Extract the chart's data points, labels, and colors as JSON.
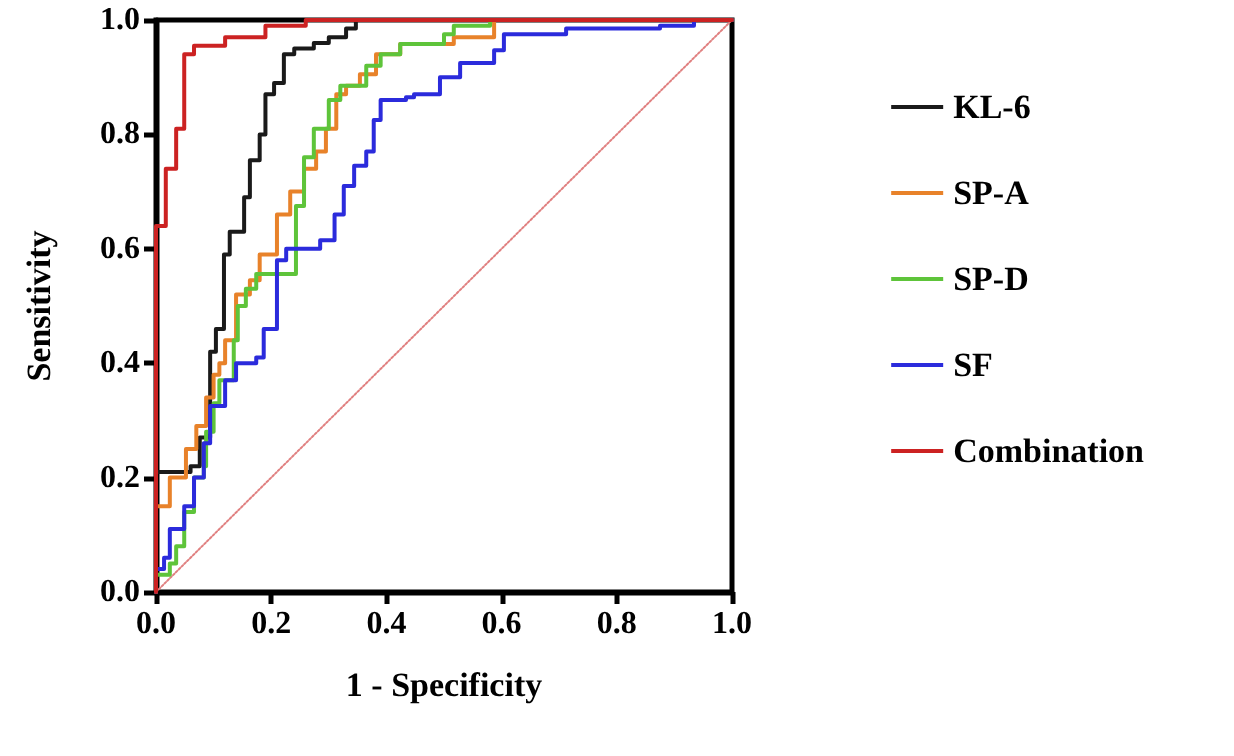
{
  "chart_data": {
    "type": "line",
    "xlabel": "1 - Specificity",
    "ylabel": "Sensitivity",
    "xlim": [
      0,
      1
    ],
    "ylim": [
      0,
      1
    ],
    "xticks": [
      {
        "value": 0,
        "label": "0.0"
      },
      0.2,
      0.4,
      0.6,
      0.8,
      {
        "value": 1,
        "label": "1.0"
      }
    ],
    "yticks": [
      {
        "value": 0,
        "label": "0.0"
      },
      0.2,
      0.4,
      0.6,
      0.8,
      {
        "value": 1,
        "label": "1.0"
      }
    ],
    "grid": false,
    "legend": "right",
    "marker": "none",
    "line_style": "solid",
    "series": [
      {
        "name": "KL-6",
        "color": "#1a1a1a",
        "x": [
          0,
          0,
          0.06,
          0.06,
          0.076,
          0.076,
          0.094,
          0.094,
          0.104,
          0.104,
          0.118,
          0.118,
          0.128,
          0.128,
          0.153,
          0.153,
          0.163,
          0.163,
          0.18,
          0.18,
          0.19,
          0.19,
          0.205,
          0.205,
          0.222,
          0.222,
          0.24,
          0.24,
          0.274,
          0.274,
          0.3,
          0.3,
          0.33,
          0.33,
          0.347,
          0.347,
          1
        ],
        "values": [
          0,
          0.21,
          0.21,
          0.22,
          0.22,
          0.27,
          0.27,
          0.42,
          0.42,
          0.46,
          0.46,
          0.59,
          0.59,
          0.63,
          0.63,
          0.69,
          0.69,
          0.755,
          0.755,
          0.8,
          0.8,
          0.87,
          0.87,
          0.89,
          0.89,
          0.94,
          0.94,
          0.95,
          0.95,
          0.96,
          0.96,
          0.97,
          0.97,
          0.985,
          0.985,
          1,
          1
        ]
      },
      {
        "name": "SP-A",
        "color": "#e8822a",
        "x": [
          0,
          0,
          0.024,
          0.024,
          0.052,
          0.052,
          0.07,
          0.07,
          0.087,
          0.087,
          0.1,
          0.1,
          0.11,
          0.11,
          0.12,
          0.12,
          0.139,
          0.139,
          0.163,
          0.163,
          0.18,
          0.18,
          0.21,
          0.21,
          0.233,
          0.233,
          0.257,
          0.257,
          0.278,
          0.278,
          0.295,
          0.295,
          0.313,
          0.313,
          0.33,
          0.33,
          0.354,
          0.354,
          0.382,
          0.382,
          0.424,
          0.424,
          0.517,
          0.517,
          0.587,
          0.587,
          1
        ],
        "values": [
          0,
          0.15,
          0.15,
          0.2,
          0.2,
          0.25,
          0.25,
          0.29,
          0.29,
          0.34,
          0.34,
          0.38,
          0.38,
          0.4,
          0.4,
          0.44,
          0.44,
          0.52,
          0.52,
          0.545,
          0.545,
          0.59,
          0.59,
          0.66,
          0.66,
          0.7,
          0.7,
          0.74,
          0.74,
          0.77,
          0.77,
          0.81,
          0.81,
          0.87,
          0.87,
          0.885,
          0.885,
          0.905,
          0.905,
          0.94,
          0.94,
          0.958,
          0.958,
          0.97,
          0.97,
          1,
          1
        ]
      },
      {
        "name": "SP-D",
        "color": "#5ec43a",
        "x": [
          0,
          0,
          0.024,
          0.024,
          0.035,
          0.035,
          0.049,
          0.049,
          0.066,
          0.066,
          0.083,
          0.083,
          0.087,
          0.087,
          0.1,
          0.1,
          0.11,
          0.11,
          0.135,
          0.135,
          0.142,
          0.142,
          0.156,
          0.156,
          0.174,
          0.174,
          0.243,
          0.243,
          0.257,
          0.257,
          0.274,
          0.274,
          0.3,
          0.3,
          0.32,
          0.32,
          0.365,
          0.365,
          0.39,
          0.39,
          0.424,
          0.424,
          0.5,
          0.5,
          0.517,
          0.517,
          0.58,
          0.58,
          1
        ],
        "values": [
          0,
          0.03,
          0.03,
          0.05,
          0.05,
          0.08,
          0.08,
          0.14,
          0.14,
          0.2,
          0.2,
          0.22,
          0.22,
          0.28,
          0.28,
          0.33,
          0.33,
          0.37,
          0.37,
          0.44,
          0.44,
          0.5,
          0.5,
          0.53,
          0.53,
          0.556,
          0.556,
          0.675,
          0.675,
          0.76,
          0.76,
          0.81,
          0.81,
          0.86,
          0.86,
          0.885,
          0.885,
          0.92,
          0.92,
          0.94,
          0.94,
          0.958,
          0.958,
          0.975,
          0.975,
          0.99,
          0.99,
          1,
          1
        ]
      },
      {
        "name": "SF",
        "color": "#2b2bdc",
        "x": [
          0,
          0,
          0.014,
          0.014,
          0.024,
          0.024,
          0.049,
          0.049,
          0.066,
          0.066,
          0.083,
          0.083,
          0.094,
          0.094,
          0.12,
          0.12,
          0.139,
          0.139,
          0.174,
          0.174,
          0.187,
          0.187,
          0.21,
          0.21,
          0.226,
          0.226,
          0.285,
          0.285,
          0.31,
          0.31,
          0.326,
          0.326,
          0.344,
          0.344,
          0.365,
          0.365,
          0.378,
          0.378,
          0.39,
          0.39,
          0.434,
          0.434,
          0.448,
          0.448,
          0.493,
          0.493,
          0.528,
          0.528,
          0.587,
          0.587,
          0.604,
          0.604,
          0.712,
          0.712,
          0.875,
          0.875,
          0.934,
          0.934,
          1
        ],
        "values": [
          0,
          0.04,
          0.04,
          0.06,
          0.06,
          0.11,
          0.11,
          0.15,
          0.15,
          0.2,
          0.2,
          0.26,
          0.26,
          0.325,
          0.325,
          0.37,
          0.37,
          0.4,
          0.4,
          0.41,
          0.41,
          0.46,
          0.46,
          0.58,
          0.58,
          0.6,
          0.6,
          0.615,
          0.615,
          0.66,
          0.66,
          0.71,
          0.71,
          0.745,
          0.745,
          0.77,
          0.77,
          0.825,
          0.825,
          0.86,
          0.86,
          0.865,
          0.865,
          0.87,
          0.87,
          0.9,
          0.9,
          0.925,
          0.925,
          0.947,
          0.947,
          0.975,
          0.975,
          0.985,
          0.985,
          0.99,
          0.99,
          1,
          1
        ]
      },
      {
        "name": "Combination",
        "color": "#cc2222",
        "x": [
          0,
          0,
          0.017,
          0.017,
          0.035,
          0.035,
          0.049,
          0.049,
          0.066,
          0.066,
          0.12,
          0.12,
          0.19,
          0.19,
          0.26,
          0.26,
          1
        ],
        "values": [
          0,
          0.64,
          0.64,
          0.74,
          0.74,
          0.81,
          0.81,
          0.94,
          0.94,
          0.955,
          0.955,
          0.97,
          0.97,
          0.99,
          0.99,
          1,
          1
        ]
      },
      {
        "color": "#e08080",
        "line_style": "dotted",
        "x": [
          0,
          1
        ],
        "values": [
          0,
          1
        ]
      }
    ]
  }
}
